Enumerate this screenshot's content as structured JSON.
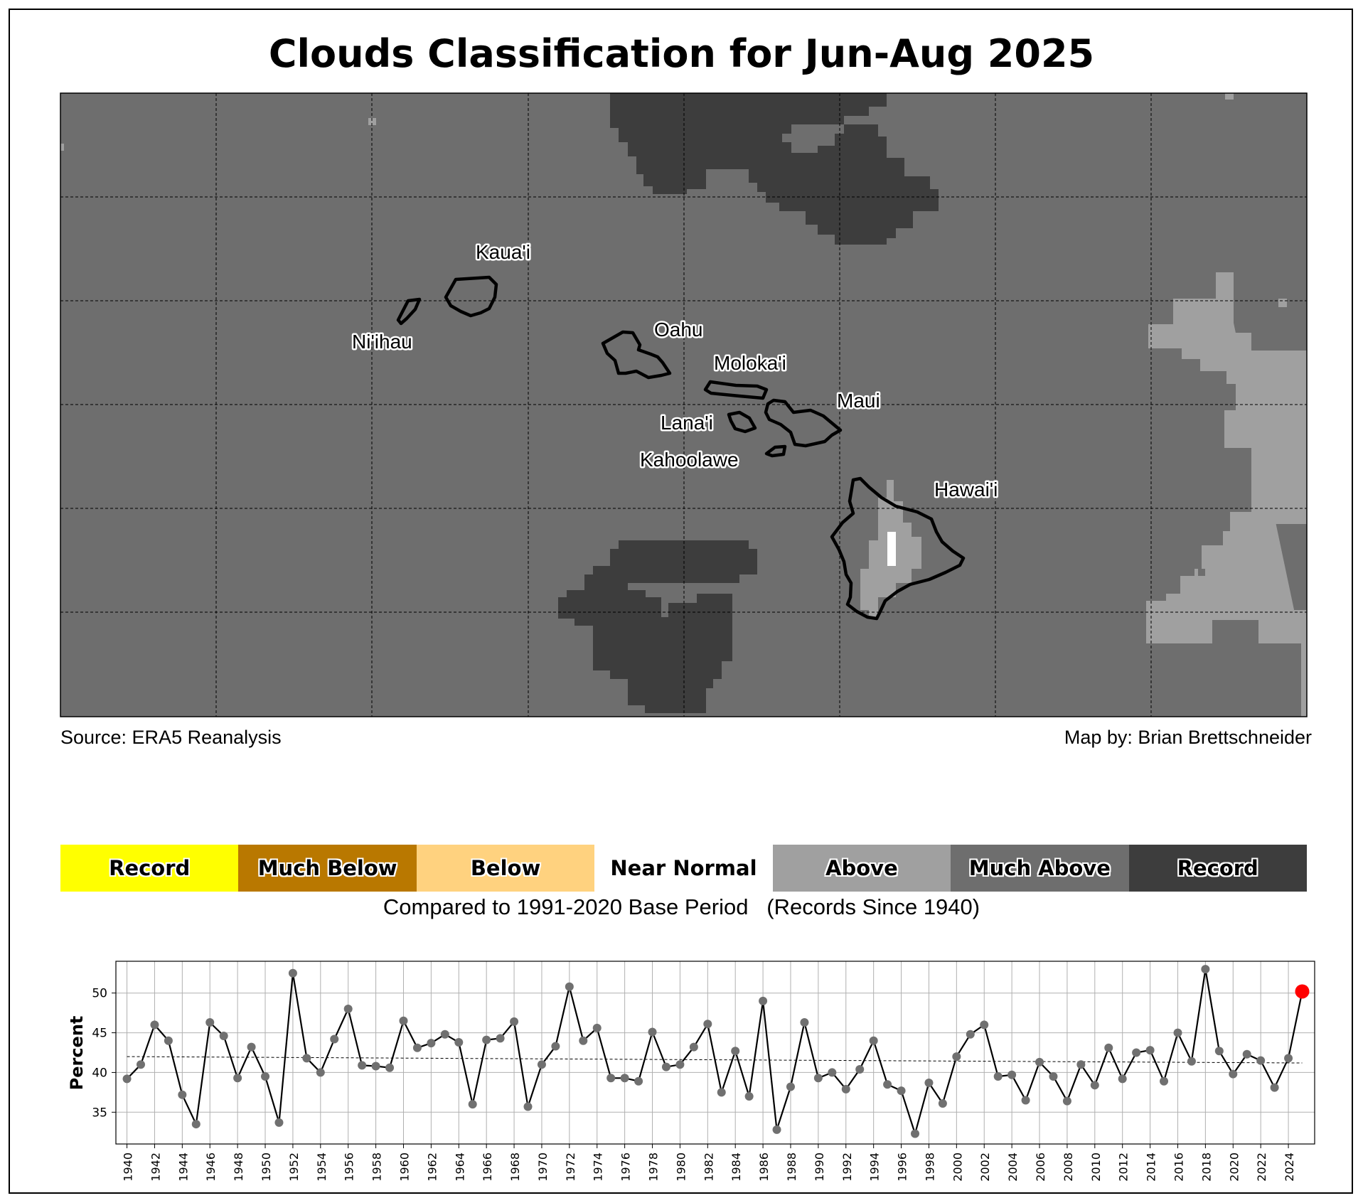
{
  "title": "Clouds Classification for Jun-Aug 2025",
  "map": {
    "islands": [
      {
        "name": "Kaua'i"
      },
      {
        "name": "Ni'ihau"
      },
      {
        "name": "Oahu"
      },
      {
        "name": "Moloka'i"
      },
      {
        "name": "Maui"
      },
      {
        "name": "Lana'i"
      },
      {
        "name": "Kahoolawe"
      },
      {
        "name": "Hawai'i"
      }
    ],
    "colors": {
      "near_normal_fill": "#6e6e6e",
      "much_above": "#3d3d3d",
      "above": "#a0a0a0",
      "near_normal_white": "#ffffff"
    }
  },
  "source": "Source: ERA5 Reanalysis",
  "author": "Map by: Brian Brettschneider",
  "legend": {
    "items": [
      {
        "label": "Record",
        "color": "#ffff00"
      },
      {
        "label": "Much Below",
        "color": "#b97800"
      },
      {
        "label": "Below",
        "color": "#ffd27f"
      },
      {
        "label": "Near Normal",
        "color": "#ffffff"
      },
      {
        "label": "Above",
        "color": "#a0a0a0"
      },
      {
        "label": "Much Above",
        "color": "#6e6e6e"
      },
      {
        "label": "Record",
        "color": "#3d3d3d"
      }
    ],
    "caption": "Compared to 1991-2020 Base Period   (Records Since 1940)"
  },
  "chart_data": {
    "type": "line",
    "ylabel": "Percent",
    "xlabel": "",
    "ylim": [
      31,
      54
    ],
    "xlim": [
      1939.2,
      2025.9
    ],
    "yticks": [
      35,
      40,
      45,
      50
    ],
    "grid": true,
    "x": [
      1940,
      1941,
      1942,
      1943,
      1944,
      1945,
      1946,
      1947,
      1948,
      1949,
      1950,
      1951,
      1952,
      1953,
      1954,
      1955,
      1956,
      1957,
      1958,
      1959,
      1960,
      1961,
      1962,
      1963,
      1964,
      1965,
      1966,
      1967,
      1968,
      1969,
      1970,
      1971,
      1972,
      1973,
      1974,
      1975,
      1976,
      1977,
      1978,
      1979,
      1980,
      1981,
      1982,
      1983,
      1984,
      1985,
      1986,
      1987,
      1988,
      1989,
      1990,
      1991,
      1992,
      1993,
      1994,
      1995,
      1996,
      1997,
      1998,
      1999,
      2000,
      2001,
      2002,
      2003,
      2004,
      2005,
      2006,
      2007,
      2008,
      2009,
      2010,
      2011,
      2012,
      2013,
      2014,
      2015,
      2016,
      2017,
      2018,
      2019,
      2020,
      2021,
      2022,
      2023,
      2024,
      2025
    ],
    "values": [
      39.2,
      41.0,
      46.0,
      44.0,
      37.2,
      33.5,
      46.3,
      44.6,
      39.3,
      43.2,
      39.5,
      33.7,
      52.5,
      41.8,
      40.0,
      44.2,
      48.0,
      40.9,
      40.8,
      40.6,
      46.5,
      43.1,
      43.7,
      44.8,
      43.8,
      36.0,
      44.1,
      44.3,
      46.4,
      35.7,
      41.0,
      43.3,
      50.8,
      44.0,
      45.6,
      39.3,
      39.3,
      38.9,
      45.1,
      40.7,
      41.0,
      43.2,
      46.1,
      37.5,
      42.7,
      37.0,
      49.0,
      32.8,
      38.2,
      46.3,
      39.3,
      40.0,
      37.9,
      40.4,
      44.0,
      38.5,
      37.7,
      32.3,
      38.7,
      36.1,
      42.0,
      44.8,
      46.0,
      39.5,
      39.7,
      36.5,
      41.3,
      39.5,
      36.4,
      41.0,
      38.4,
      43.1,
      39.2,
      42.5,
      42.8,
      38.9,
      45.0,
      41.4,
      53.0,
      42.7,
      39.8,
      42.3,
      41.5,
      38.1,
      41.8,
      50.2
    ],
    "trend": {
      "start": [
        1940,
        42.0
      ],
      "end": [
        2025,
        41.2
      ]
    },
    "highlight": {
      "x": 2025,
      "value": 50.2,
      "color": "#ff0000"
    },
    "line_color": "#000000",
    "marker_color": "#707070"
  }
}
